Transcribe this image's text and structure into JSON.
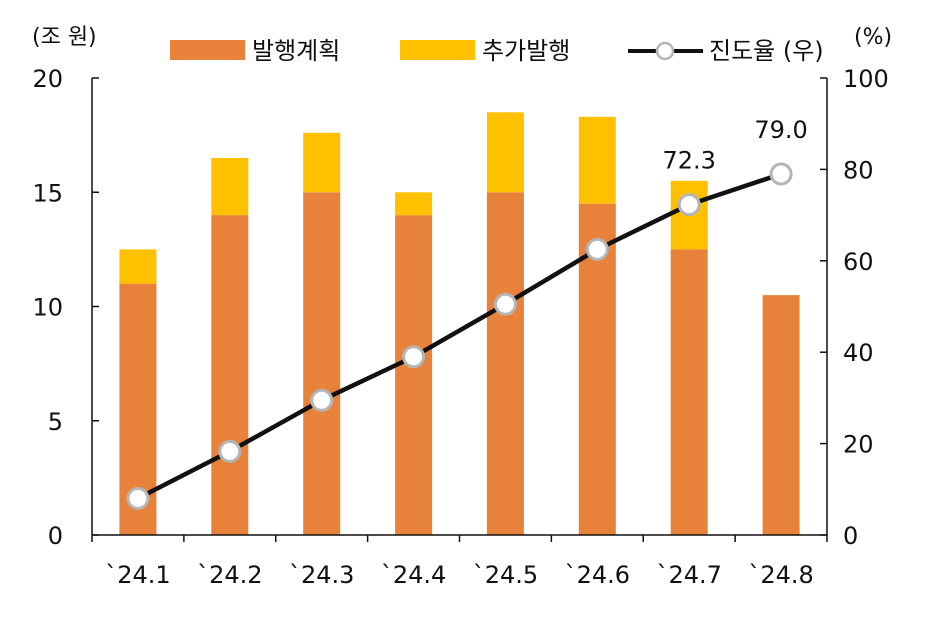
{
  "chart_data": {
    "type": "bar",
    "stacked": true,
    "categories": [
      "`24.1",
      "`24.2",
      "`24.3",
      "`24.4",
      "`24.5",
      "`24.6",
      "`24.7",
      "`24.8"
    ],
    "series": [
      {
        "name": "발행계획",
        "axis": "left",
        "color": "#E8823A",
        "values": [
          11.0,
          14.0,
          15.0,
          14.0,
          15.0,
          14.5,
          12.5,
          10.5
        ]
      },
      {
        "name": "추가발행",
        "axis": "left",
        "color": "#FFC000",
        "values": [
          1.5,
          2.5,
          2.6,
          1.0,
          3.5,
          3.8,
          3.0,
          0
        ]
      },
      {
        "name": "진도율 (우)",
        "axis": "right",
        "type": "line",
        "color": "#111111",
        "values": [
          8.0,
          18.3,
          29.5,
          39.0,
          50.5,
          62.5,
          72.3,
          79.0
        ]
      }
    ],
    "data_labels": [
      {
        "series": "진도율 (우)",
        "index": 6,
        "text": "72.3"
      },
      {
        "series": "진도율 (우)",
        "index": 7,
        "text": "79.0"
      }
    ],
    "left_axis": {
      "unit_label": "(조 원)",
      "ylim": [
        0,
        20
      ],
      "ticks": [
        0,
        5,
        10,
        15,
        20
      ],
      "tick_labels": [
        "0",
        "5",
        "10",
        "15",
        "20"
      ]
    },
    "right_axis": {
      "unit_label": "(%)",
      "ylim": [
        0,
        100
      ],
      "ticks": [
        0,
        20,
        40,
        60,
        80,
        100
      ],
      "tick_labels": [
        "0",
        "20",
        "40",
        "60",
        "80",
        "100"
      ]
    },
    "legend": {
      "position": "top",
      "entries": [
        "발행계획",
        "추가발행",
        "진도율 (우)"
      ]
    },
    "grid": false
  }
}
